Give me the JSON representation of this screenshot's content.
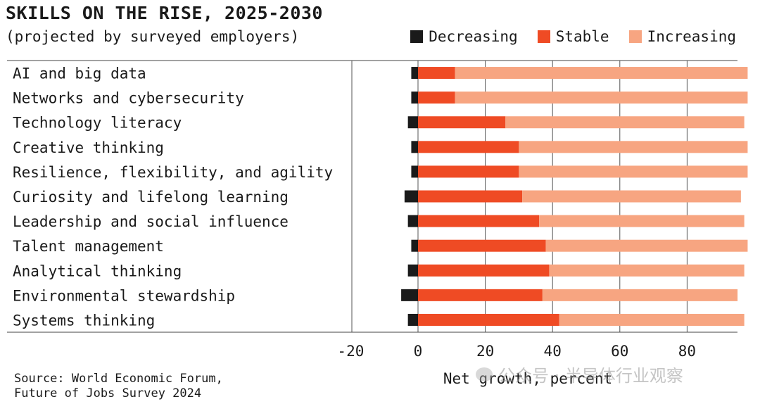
{
  "title": "SKILLS ON THE RISE, 2025-2030",
  "subtitle": "(projected by surveyed employers)",
  "source": [
    "Source: World Economic Forum,",
    "Future of Jobs Survey 2024"
  ],
  "watermark": "公众号 · 半导体行业观察",
  "chart_data": {
    "type": "bar",
    "orientation": "horizontal",
    "stacked": true,
    "xlabel": "Net growth, percent",
    "xlim": [
      -22,
      93
    ],
    "xticks": [
      -20,
      0,
      20,
      40,
      60,
      80
    ],
    "grid": true,
    "legend": "top-right",
    "categories": [
      "AI and big data",
      "Networks and cybersecurity",
      "Technology literacy",
      "Creative thinking",
      "Resilience, flexibility, and agility",
      "Curiosity and lifelong learning",
      "Leadership and social influence",
      "Talent management",
      "Analytical thinking",
      "Environmental stewardship",
      "Systems thinking"
    ],
    "series": [
      {
        "name": "Decreasing",
        "color": "#1a1a1a",
        "values": [
          2,
          2,
          3,
          2,
          2,
          4,
          3,
          2,
          3,
          5,
          3
        ]
      },
      {
        "name": "Stable",
        "color": "#ef4b24",
        "values": [
          11,
          11,
          26,
          30,
          30,
          31,
          36,
          38,
          39,
          37,
          42
        ]
      },
      {
        "name": "Increasing",
        "color": "#f7a581",
        "values": [
          87,
          87,
          71,
          68,
          68,
          65,
          61,
          60,
          58,
          58,
          55
        ]
      }
    ]
  }
}
